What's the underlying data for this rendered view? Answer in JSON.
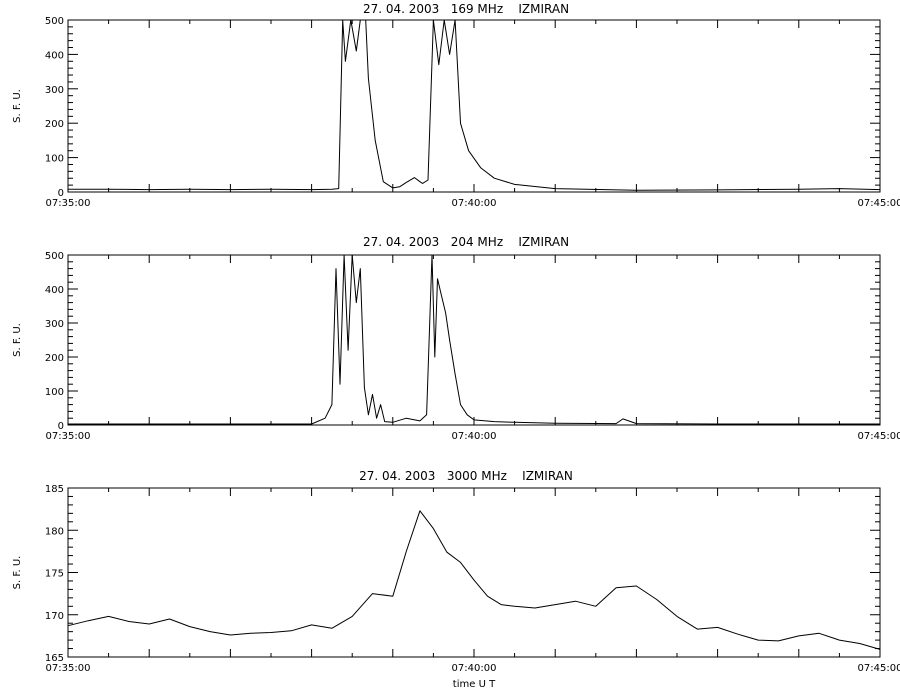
{
  "chart_data": [
    {
      "type": "line",
      "title": "27. 04. 2003   169 MHz    IZMIRAN",
      "ylabel": "S. F. U.",
      "xlabel": "",
      "xlim": [
        "07:35:00",
        "07:45:00"
      ],
      "ylim": [
        0,
        500
      ],
      "x_ticks": [
        "07:35:00",
        "07:40:00",
        "07:45:00"
      ],
      "y_ticks": [
        "0",
        "100",
        "200",
        "300",
        "400",
        "500"
      ],
      "grid": false,
      "series": [
        {
          "x": [
            "07:35:00",
            "07:35:30",
            "07:36:00",
            "07:36:30",
            "07:37:00",
            "07:37:30",
            "07:38:00",
            "07:38:15",
            "07:38:20",
            "07:38:23",
            "07:38:25",
            "07:38:29",
            "07:38:33",
            "07:38:36",
            "07:38:40",
            "07:38:42",
            "07:38:47",
            "07:38:53",
            "07:39:00",
            "07:39:05",
            "07:39:10",
            "07:39:16",
            "07:39:20",
            "07:39:22",
            "07:39:26",
            "07:39:30",
            "07:39:34",
            "07:39:38",
            "07:39:42",
            "07:39:46",
            "07:39:50",
            "07:39:56",
            "07:40:05",
            "07:40:15",
            "07:40:30",
            "07:41:00",
            "07:42:00",
            "07:43:00",
            "07:44:00",
            "07:44:30",
            "07:45:00"
          ],
          "y": [
            8,
            8,
            7,
            8,
            7,
            8,
            7,
            8,
            10,
            500,
            380,
            500,
            410,
            500,
            500,
            330,
            150,
            30,
            12,
            15,
            28,
            42,
            30,
            25,
            35,
            500,
            370,
            500,
            400,
            500,
            200,
            120,
            70,
            40,
            22,
            10,
            5,
            6,
            8,
            10,
            7
          ]
        }
      ]
    },
    {
      "type": "line",
      "title": "27. 04. 2003   204 MHz    IZMIRAN",
      "ylabel": "S. F. U.",
      "xlabel": "",
      "xlim": [
        "07:35:00",
        "07:45:00"
      ],
      "ylim": [
        0,
        500
      ],
      "x_ticks": [
        "07:35:00",
        "07:40:00",
        "07:45:00"
      ],
      "y_ticks": [
        "0",
        "100",
        "200",
        "300",
        "400",
        "500"
      ],
      "grid": false,
      "series": [
        {
          "x": [
            "07:35:00",
            "07:36:00",
            "07:37:00",
            "07:38:00",
            "07:38:10",
            "07:38:15",
            "07:38:18",
            "07:38:21",
            "07:38:24",
            "07:38:27",
            "07:38:30",
            "07:38:33",
            "07:38:36",
            "07:38:39",
            "07:38:42",
            "07:38:45",
            "07:38:48",
            "07:38:51",
            "07:38:54",
            "07:39:00",
            "07:39:10",
            "07:39:20",
            "07:39:25",
            "07:39:29",
            "07:39:31",
            "07:39:33",
            "07:39:36",
            "07:39:39",
            "07:39:42",
            "07:39:46",
            "07:39:50",
            "07:39:55",
            "07:40:00",
            "07:40:15",
            "07:40:30",
            "07:41:00",
            "07:41:45",
            "07:41:50",
            "07:42:00",
            "07:43:00",
            "07:44:00",
            "07:45:00"
          ],
          "y": [
            3,
            3,
            3,
            3,
            20,
            60,
            460,
            120,
            500,
            220,
            500,
            360,
            460,
            110,
            30,
            90,
            20,
            60,
            10,
            8,
            20,
            12,
            30,
            500,
            200,
            430,
            380,
            330,
            250,
            150,
            60,
            30,
            15,
            10,
            8,
            5,
            4,
            18,
            4,
            3,
            3,
            3
          ]
        }
      ]
    },
    {
      "type": "line",
      "title": "27. 04. 2003   3000 MHz    IZMIRAN",
      "ylabel": "S. F. U.",
      "xlabel": "time  U T",
      "xlim": [
        "07:35:00",
        "07:45:00"
      ],
      "ylim": [
        165,
        185
      ],
      "x_ticks": [
        "07:35:00",
        "07:40:00",
        "07:45:00"
      ],
      "y_ticks": [
        "165",
        "170",
        "175",
        "180",
        "185"
      ],
      "grid": false,
      "series": [
        {
          "x": [
            "07:35:00",
            "07:35:15",
            "07:35:30",
            "07:35:45",
            "07:36:00",
            "07:36:15",
            "07:36:30",
            "07:36:45",
            "07:37:00",
            "07:37:15",
            "07:37:30",
            "07:37:45",
            "07:38:00",
            "07:38:15",
            "07:38:30",
            "07:38:45",
            "07:39:00",
            "07:39:10",
            "07:39:20",
            "07:39:30",
            "07:39:40",
            "07:39:50",
            "07:40:00",
            "07:40:10",
            "07:40:20",
            "07:40:30",
            "07:40:45",
            "07:41:00",
            "07:41:15",
            "07:41:30",
            "07:41:45",
            "07:42:00",
            "07:42:15",
            "07:42:30",
            "07:42:45",
            "07:43:00",
            "07:43:15",
            "07:43:30",
            "07:43:45",
            "07:44:00",
            "07:44:15",
            "07:44:30",
            "07:44:45",
            "07:45:00"
          ],
          "y": [
            168.7,
            169.3,
            169.8,
            169.2,
            168.9,
            169.5,
            168.6,
            168.0,
            167.6,
            167.8,
            167.9,
            168.1,
            168.8,
            168.4,
            169.8,
            172.5,
            172.2,
            177.5,
            182.3,
            180.2,
            177.4,
            176.2,
            174.1,
            172.2,
            171.2,
            171.0,
            170.8,
            171.2,
            171.6,
            171.0,
            173.2,
            173.4,
            171.8,
            169.8,
            168.3,
            168.5,
            167.7,
            167.0,
            166.9,
            167.5,
            167.8,
            167.0,
            166.6,
            165.9
          ]
        }
      ]
    }
  ]
}
